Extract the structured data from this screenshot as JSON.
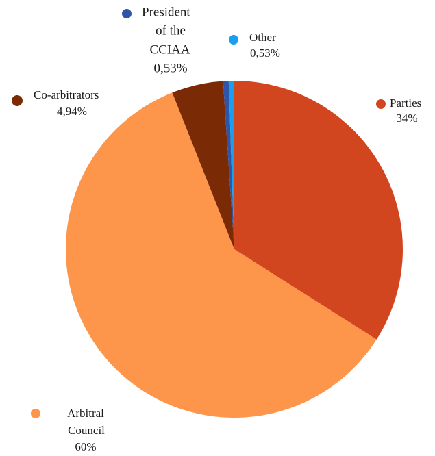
{
  "chart_data": {
    "type": "pie",
    "title": "",
    "slices": [
      {
        "name": "Parties",
        "value_label": "34%",
        "value": 34,
        "color": "#d2461f"
      },
      {
        "name": "Arbitral Council",
        "value_label": "60%",
        "value": 60,
        "color": "#fd954a"
      },
      {
        "name": "Co-arbitrators",
        "value_label": "4,94%",
        "value": 4.94,
        "color": "#7b2a06"
      },
      {
        "name": "President of the CCIAA",
        "value_label": "0,53%",
        "value": 0.53,
        "color": "#2f56a6"
      },
      {
        "name": "Other",
        "value_label": "0,53%",
        "value": 0.53,
        "color": "#1a9ef0"
      }
    ],
    "labels": {
      "parties": {
        "line1": "Parties",
        "line2": "34%"
      },
      "arbitral": {
        "line1": "Arbitral",
        "line2": "Council",
        "line3": "60%"
      },
      "coarb": {
        "line1": "Co-arbitrators",
        "line2": "4,94%"
      },
      "president": {
        "line1": "President",
        "line2": "of the",
        "line3": "CCIAA",
        "line4": "0,53%"
      },
      "other": {
        "line1": "Other",
        "line2": "0,53%"
      }
    }
  }
}
